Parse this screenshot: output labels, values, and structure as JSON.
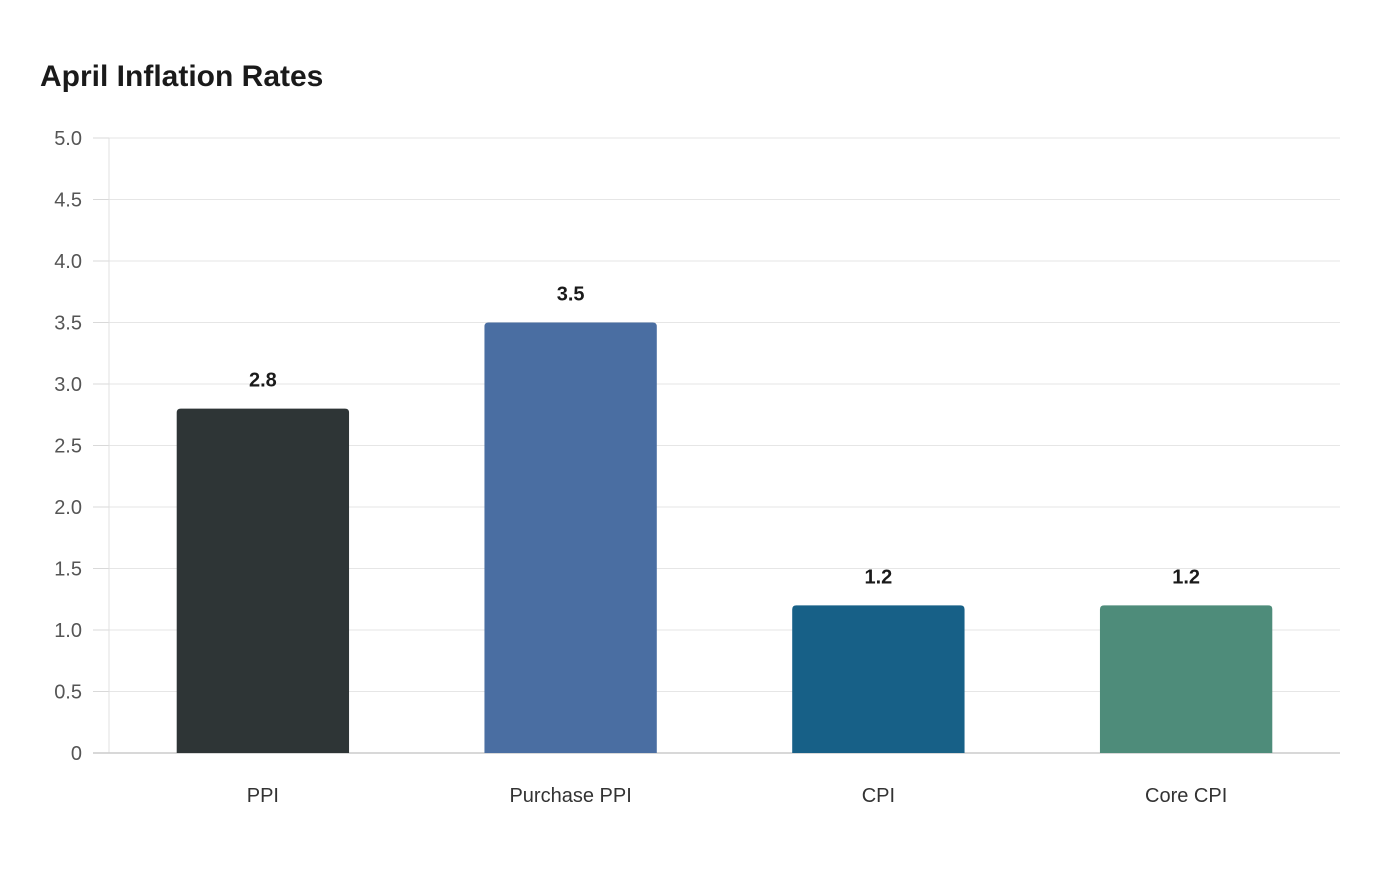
{
  "chart_data": {
    "type": "bar",
    "title": "April Inflation Rates",
    "xlabel": "",
    "ylabel": "",
    "categories": [
      "PPI",
      "Purchase PPI",
      "CPI",
      "Core CPI"
    ],
    "values": [
      2.8,
      3.5,
      1.2,
      1.2
    ],
    "value_labels": [
      "2.8",
      "3.5",
      "1.2",
      "1.2"
    ],
    "colors": [
      "#2e3536",
      "#4a6ea2",
      "#176087",
      "#4e8c7a"
    ],
    "ylim": [
      0,
      5
    ],
    "yticks": [
      0,
      0.5,
      1,
      1.5,
      2,
      2.5,
      3,
      3.5,
      4,
      4.5,
      5
    ],
    "ytick_labels": [
      "0",
      "0.5",
      "1.0",
      "1.5",
      "2.0",
      "2.5",
      "3.0",
      "3.5",
      "4.0",
      "4.5",
      "5.0"
    ],
    "grid": true,
    "legend": "none"
  }
}
